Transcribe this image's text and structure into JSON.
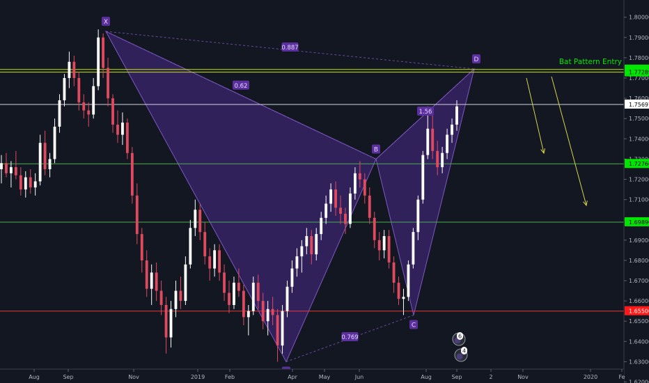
{
  "chart_data": {
    "type": "candlestick",
    "y_range": [
      1.6195,
      1.8085
    ],
    "y_ticks": [
      "1.62000",
      "1.63000",
      "1.64000",
      "1.65000",
      "1.66000",
      "1.67000",
      "1.68000",
      "1.69000",
      "1.70000",
      "1.71000",
      "1.72000",
      "1.73000",
      "1.74000",
      "1.75000",
      "1.76000",
      "1.77000",
      "1.78000",
      "1.79000",
      "1.80000"
    ],
    "x_ticks": [
      "Aug",
      "Sep",
      "Nov",
      "2019",
      "Feb",
      "Apr",
      "May",
      "Jun",
      "Aug",
      "Sep",
      "2",
      "Nov",
      "2020",
      "Fe"
    ],
    "colors": {
      "background": "#131722",
      "up": "#ffffff",
      "down": "#e04a5f",
      "pattern_fill": "#4a2a8a",
      "pattern_line": "#7e57c2",
      "green_line": "#4caf50",
      "green_label": "#00e600",
      "yellow_line": "#c8e600",
      "red_line": "#e53935",
      "white_line": "#d1d4dc",
      "axis_text": "#b2b5be",
      "arrow": "#d4d44a"
    },
    "candles": [
      {
        "o": 1.725,
        "h": 1.732,
        "l": 1.718,
        "c": 1.728
      },
      {
        "o": 1.728,
        "h": 1.733,
        "l": 1.721,
        "c": 1.723
      },
      {
        "o": 1.723,
        "h": 1.729,
        "l": 1.716,
        "c": 1.726
      },
      {
        "o": 1.726,
        "h": 1.734,
        "l": 1.72,
        "c": 1.722
      },
      {
        "o": 1.722,
        "h": 1.726,
        "l": 1.712,
        "c": 1.715
      },
      {
        "o": 1.715,
        "h": 1.724,
        "l": 1.711,
        "c": 1.721
      },
      {
        "o": 1.721,
        "h": 1.725,
        "l": 1.713,
        "c": 1.716
      },
      {
        "o": 1.716,
        "h": 1.723,
        "l": 1.712,
        "c": 1.719
      },
      {
        "o": 1.719,
        "h": 1.742,
        "l": 1.717,
        "c": 1.738
      },
      {
        "o": 1.738,
        "h": 1.744,
        "l": 1.722,
        "c": 1.725
      },
      {
        "o": 1.725,
        "h": 1.733,
        "l": 1.721,
        "c": 1.73
      },
      {
        "o": 1.73,
        "h": 1.75,
        "l": 1.728,
        "c": 1.746
      },
      {
        "o": 1.746,
        "h": 1.762,
        "l": 1.743,
        "c": 1.759
      },
      {
        "o": 1.759,
        "h": 1.772,
        "l": 1.756,
        "c": 1.77
      },
      {
        "o": 1.77,
        "h": 1.783,
        "l": 1.765,
        "c": 1.778
      },
      {
        "o": 1.778,
        "h": 1.781,
        "l": 1.766,
        "c": 1.77
      },
      {
        "o": 1.77,
        "h": 1.773,
        "l": 1.754,
        "c": 1.758
      },
      {
        "o": 1.758,
        "h": 1.762,
        "l": 1.75,
        "c": 1.754
      },
      {
        "o": 1.754,
        "h": 1.758,
        "l": 1.746,
        "c": 1.752
      },
      {
        "o": 1.752,
        "h": 1.77,
        "l": 1.75,
        "c": 1.766
      },
      {
        "o": 1.766,
        "h": 1.794,
        "l": 1.764,
        "c": 1.79
      },
      {
        "o": 1.79,
        "h": 1.792,
        "l": 1.77,
        "c": 1.775
      },
      {
        "o": 1.775,
        "h": 1.78,
        "l": 1.756,
        "c": 1.76
      },
      {
        "o": 1.76,
        "h": 1.762,
        "l": 1.743,
        "c": 1.747
      },
      {
        "o": 1.747,
        "h": 1.754,
        "l": 1.738,
        "c": 1.742
      },
      {
        "o": 1.742,
        "h": 1.753,
        "l": 1.737,
        "c": 1.748
      },
      {
        "o": 1.748,
        "h": 1.75,
        "l": 1.73,
        "c": 1.733
      },
      {
        "o": 1.733,
        "h": 1.736,
        "l": 1.708,
        "c": 1.712
      },
      {
        "o": 1.712,
        "h": 1.718,
        "l": 1.688,
        "c": 1.693
      },
      {
        "o": 1.693,
        "h": 1.696,
        "l": 1.674,
        "c": 1.68
      },
      {
        "o": 1.68,
        "h": 1.685,
        "l": 1.662,
        "c": 1.666
      },
      {
        "o": 1.666,
        "h": 1.678,
        "l": 1.658,
        "c": 1.674
      },
      {
        "o": 1.674,
        "h": 1.679,
        "l": 1.66,
        "c": 1.665
      },
      {
        "o": 1.665,
        "h": 1.67,
        "l": 1.653,
        "c": 1.658
      },
      {
        "o": 1.658,
        "h": 1.662,
        "l": 1.634,
        "c": 1.642
      },
      {
        "o": 1.642,
        "h": 1.66,
        "l": 1.637,
        "c": 1.656
      },
      {
        "o": 1.656,
        "h": 1.67,
        "l": 1.652,
        "c": 1.665
      },
      {
        "o": 1.665,
        "h": 1.672,
        "l": 1.656,
        "c": 1.66
      },
      {
        "o": 1.66,
        "h": 1.682,
        "l": 1.658,
        "c": 1.678
      },
      {
        "o": 1.678,
        "h": 1.7,
        "l": 1.676,
        "c": 1.696
      },
      {
        "o": 1.696,
        "h": 1.71,
        "l": 1.692,
        "c": 1.705
      },
      {
        "o": 1.705,
        "h": 1.708,
        "l": 1.69,
        "c": 1.694
      },
      {
        "o": 1.694,
        "h": 1.699,
        "l": 1.678,
        "c": 1.682
      },
      {
        "o": 1.682,
        "h": 1.686,
        "l": 1.67,
        "c": 1.676
      },
      {
        "o": 1.676,
        "h": 1.688,
        "l": 1.672,
        "c": 1.685
      },
      {
        "o": 1.685,
        "h": 1.688,
        "l": 1.67,
        "c": 1.674
      },
      {
        "o": 1.674,
        "h": 1.678,
        "l": 1.66,
        "c": 1.664
      },
      {
        "o": 1.664,
        "h": 1.67,
        "l": 1.654,
        "c": 1.658
      },
      {
        "o": 1.658,
        "h": 1.672,
        "l": 1.656,
        "c": 1.669
      },
      {
        "o": 1.669,
        "h": 1.676,
        "l": 1.662,
        "c": 1.665
      },
      {
        "o": 1.665,
        "h": 1.668,
        "l": 1.648,
        "c": 1.652
      },
      {
        "o": 1.652,
        "h": 1.658,
        "l": 1.643,
        "c": 1.655
      },
      {
        "o": 1.655,
        "h": 1.672,
        "l": 1.653,
        "c": 1.669
      },
      {
        "o": 1.669,
        "h": 1.673,
        "l": 1.656,
        "c": 1.66
      },
      {
        "o": 1.66,
        "h": 1.664,
        "l": 1.646,
        "c": 1.65
      },
      {
        "o": 1.65,
        "h": 1.66,
        "l": 1.643,
        "c": 1.656
      },
      {
        "o": 1.656,
        "h": 1.662,
        "l": 1.648,
        "c": 1.653
      },
      {
        "o": 1.653,
        "h": 1.656,
        "l": 1.63,
        "c": 1.638
      },
      {
        "o": 1.638,
        "h": 1.658,
        "l": 1.634,
        "c": 1.655
      },
      {
        "o": 1.655,
        "h": 1.67,
        "l": 1.652,
        "c": 1.667
      },
      {
        "o": 1.667,
        "h": 1.68,
        "l": 1.664,
        "c": 1.676
      },
      {
        "o": 1.676,
        "h": 1.686,
        "l": 1.672,
        "c": 1.682
      },
      {
        "o": 1.682,
        "h": 1.69,
        "l": 1.674,
        "c": 1.687
      },
      {
        "o": 1.687,
        "h": 1.696,
        "l": 1.683,
        "c": 1.692
      },
      {
        "o": 1.692,
        "h": 1.695,
        "l": 1.678,
        "c": 1.683
      },
      {
        "o": 1.683,
        "h": 1.696,
        "l": 1.68,
        "c": 1.693
      },
      {
        "o": 1.693,
        "h": 1.704,
        "l": 1.69,
        "c": 1.701
      },
      {
        "o": 1.701,
        "h": 1.712,
        "l": 1.698,
        "c": 1.708
      },
      {
        "o": 1.708,
        "h": 1.718,
        "l": 1.704,
        "c": 1.715
      },
      {
        "o": 1.715,
        "h": 1.719,
        "l": 1.702,
        "c": 1.706
      },
      {
        "o": 1.706,
        "h": 1.712,
        "l": 1.698,
        "c": 1.703
      },
      {
        "o": 1.703,
        "h": 1.706,
        "l": 1.693,
        "c": 1.698
      },
      {
        "o": 1.698,
        "h": 1.716,
        "l": 1.696,
        "c": 1.713
      },
      {
        "o": 1.713,
        "h": 1.726,
        "l": 1.71,
        "c": 1.723
      },
      {
        "o": 1.723,
        "h": 1.729,
        "l": 1.716,
        "c": 1.72
      },
      {
        "o": 1.72,
        "h": 1.723,
        "l": 1.708,
        "c": 1.712
      },
      {
        "o": 1.712,
        "h": 1.716,
        "l": 1.698,
        "c": 1.701
      },
      {
        "o": 1.701,
        "h": 1.704,
        "l": 1.686,
        "c": 1.69
      },
      {
        "o": 1.69,
        "h": 1.694,
        "l": 1.68,
        "c": 1.685
      },
      {
        "o": 1.685,
        "h": 1.695,
        "l": 1.681,
        "c": 1.692
      },
      {
        "o": 1.692,
        "h": 1.695,
        "l": 1.676,
        "c": 1.679
      },
      {
        "o": 1.679,
        "h": 1.682,
        "l": 1.664,
        "c": 1.669
      },
      {
        "o": 1.669,
        "h": 1.672,
        "l": 1.658,
        "c": 1.661
      },
      {
        "o": 1.661,
        "h": 1.666,
        "l": 1.653,
        "c": 1.662
      },
      {
        "o": 1.662,
        "h": 1.68,
        "l": 1.66,
        "c": 1.678
      },
      {
        "o": 1.678,
        "h": 1.696,
        "l": 1.676,
        "c": 1.694
      },
      {
        "o": 1.694,
        "h": 1.712,
        "l": 1.69,
        "c": 1.71
      },
      {
        "o": 1.71,
        "h": 1.734,
        "l": 1.708,
        "c": 1.732
      },
      {
        "o": 1.732,
        "h": 1.756,
        "l": 1.73,
        "c": 1.745
      },
      {
        "o": 1.745,
        "h": 1.752,
        "l": 1.73,
        "c": 1.734
      },
      {
        "o": 1.734,
        "h": 1.739,
        "l": 1.722,
        "c": 1.726
      },
      {
        "o": 1.726,
        "h": 1.736,
        "l": 1.723,
        "c": 1.733
      },
      {
        "o": 1.733,
        "h": 1.745,
        "l": 1.73,
        "c": 1.742
      },
      {
        "o": 1.742,
        "h": 1.75,
        "l": 1.738,
        "c": 1.747
      },
      {
        "o": 1.747,
        "h": 1.759,
        "l": 1.744,
        "c": 1.756
      }
    ],
    "levels": [
      {
        "name": "level-1.77421",
        "price": 1.77421,
        "color": "yellow_line",
        "label": "1.77421",
        "label_bg": "#00e600",
        "label_color": "#000000"
      },
      {
        "name": "level-1.77289",
        "price": 1.77289,
        "color": "yellow_line",
        "label": "1.77289",
        "label_bg": "#00e600",
        "label_color": "#000000"
      },
      {
        "name": "level-1.75697",
        "price": 1.75697,
        "color": "white_line",
        "label": "1.75697",
        "label_bg": "#ffffff",
        "label_color": "#000000"
      },
      {
        "name": "level-1.72766",
        "price": 1.72766,
        "color": "green_line",
        "label": "1.72766",
        "label_bg": "#00e600",
        "label_color": "#000000"
      },
      {
        "name": "level-1.69890",
        "price": 1.6989,
        "color": "green_line",
        "label": "1.69890",
        "label_bg": "#00e600",
        "label_color": "#000000"
      },
      {
        "name": "level-1.65500",
        "price": 1.655,
        "color": "red_line",
        "label": "1.65500",
        "label_bg": "#ff1a1a",
        "label_color": "#ffffff"
      }
    ],
    "pattern_points": [
      {
        "name": "X",
        "price": 1.793
      },
      {
        "name": "A",
        "price": 1.63
      },
      {
        "name": "B",
        "price": 1.73
      },
      {
        "name": "C",
        "price": 1.653
      },
      {
        "name": "D",
        "price": 1.7745
      }
    ],
    "ratios": [
      {
        "label": "0.887"
      },
      {
        "label": "0.62"
      },
      {
        "label": "1.56"
      },
      {
        "label": "0.769"
      }
    ],
    "annotations": {
      "entry_label": "Bat Pattern Entry"
    },
    "badges": [
      "6",
      "4"
    ]
  }
}
